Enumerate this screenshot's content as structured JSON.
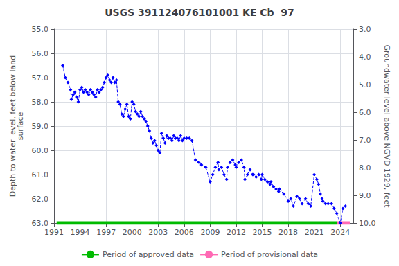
{
  "chart_data": {
    "type": "line",
    "title": "USGS 391124076101001 KE Cb  97",
    "y_label": "Depth to water level, feet below land\nsurface",
    "y2_label": "Groundwater level above NGVD 1929, feet",
    "xlim": [
      1991.0,
      2025.5
    ],
    "xticks": [
      1991,
      1994,
      1997,
      2000,
      2003,
      2006,
      2009,
      2012,
      2015,
      2018,
      2021,
      2024
    ],
    "ylim": [
      63.0,
      55.0
    ],
    "yticks": [
      {
        "value": 55.0,
        "label": "55.0"
      },
      {
        "value": 56.0,
        "label": "56.0"
      },
      {
        "value": 57.0,
        "label": "57.0"
      },
      {
        "value": 58.0,
        "label": "58.0"
      },
      {
        "value": 59.0,
        "label": "59.0"
      },
      {
        "value": 60.0,
        "label": "60.0"
      },
      {
        "value": 61.0,
        "label": "61.0"
      },
      {
        "value": 62.0,
        "label": "62.0"
      },
      {
        "value": 63.0,
        "label": "63.0"
      }
    ],
    "y2lim": [
      10.0,
      3.0
    ],
    "y2ticks": [
      {
        "value": 3.0,
        "label": "3.0"
      },
      {
        "value": 4.0,
        "label": "4.0"
      },
      {
        "value": 5.0,
        "label": "5.0"
      },
      {
        "value": 6.0,
        "label": "6.0"
      },
      {
        "value": 7.0,
        "label": "7.0"
      },
      {
        "value": 8.0,
        "label": "8.0"
      },
      {
        "value": 9.0,
        "label": "9.0"
      },
      {
        "value": 10.0,
        "label": "10.0"
      }
    ],
    "grid": true,
    "legend": "bottom",
    "series": [
      {
        "color": "#0000FF",
        "marker": "diamond",
        "line_style": "dashed",
        "x": [
          1992.0,
          1992.3,
          1992.6,
          1992.9,
          1993.0,
          1993.2,
          1993.4,
          1993.6,
          1993.8,
          1994.0,
          1994.2,
          1994.4,
          1994.6,
          1994.8,
          1995.0,
          1995.2,
          1995.4,
          1995.6,
          1995.8,
          1996.0,
          1996.2,
          1996.4,
          1996.6,
          1996.8,
          1997.0,
          1997.2,
          1997.4,
          1997.6,
          1997.8,
          1998.0,
          1998.2,
          1998.4,
          1998.6,
          1998.8,
          1999.0,
          1999.2,
          1999.4,
          1999.6,
          1999.8,
          2000.0,
          2000.2,
          2000.4,
          2000.6,
          2000.8,
          2001.0,
          2001.2,
          2001.4,
          2001.6,
          2001.8,
          2002.0,
          2002.2,
          2002.4,
          2002.6,
          2002.8,
          2003.0,
          2003.2,
          2003.4,
          2003.6,
          2003.8,
          2004.0,
          2004.2,
          2004.4,
          2004.6,
          2004.8,
          2005.0,
          2005.2,
          2005.4,
          2005.6,
          2005.8,
          2006.0,
          2006.3,
          2006.6,
          2006.9,
          2007.3,
          2007.7,
          2008.0,
          2008.5,
          2009.0,
          2009.3,
          2009.6,
          2009.9,
          2010.0,
          2010.3,
          2010.6,
          2010.9,
          2011.0,
          2011.3,
          2011.6,
          2011.9,
          2012.0,
          2012.3,
          2012.6,
          2012.9,
          2013.0,
          2013.3,
          2013.6,
          2013.9,
          2014.0,
          2014.3,
          2014.6,
          2014.9,
          2015.0,
          2015.3,
          2015.6,
          2015.9,
          2016.0,
          2016.3,
          2016.6,
          2016.9,
          2017.0,
          2017.5,
          2018.0,
          2018.3,
          2018.6,
          2019.0,
          2019.3,
          2019.6,
          2020.0,
          2020.3,
          2020.6,
          2021.0,
          2021.3,
          2021.5,
          2021.7,
          2021.9,
          2022.0,
          2022.3,
          2022.6,
          2023.0,
          2023.3,
          2023.6,
          2024.0,
          2024.3,
          2024.6
        ],
        "values": [
          56.5,
          57.0,
          57.2,
          57.5,
          57.9,
          57.7,
          57.6,
          57.8,
          58.0,
          57.5,
          57.4,
          57.6,
          57.5,
          57.6,
          57.7,
          57.5,
          57.6,
          57.7,
          57.8,
          57.5,
          57.6,
          57.5,
          57.4,
          57.2,
          57.0,
          56.9,
          57.1,
          57.2,
          57.0,
          57.2,
          57.1,
          58.0,
          58.1,
          58.5,
          58.6,
          58.3,
          58.1,
          58.6,
          58.7,
          58.0,
          58.1,
          58.4,
          58.5,
          58.6,
          58.4,
          58.6,
          58.7,
          58.8,
          59.0,
          59.2,
          59.5,
          59.7,
          59.6,
          59.8,
          60.0,
          60.1,
          59.3,
          59.5,
          59.7,
          59.4,
          59.5,
          59.5,
          59.6,
          59.4,
          59.5,
          59.5,
          59.6,
          59.4,
          59.6,
          59.5,
          59.5,
          59.5,
          59.6,
          60.4,
          60.5,
          60.6,
          60.7,
          61.3,
          61.0,
          60.7,
          60.5,
          60.8,
          60.7,
          61.0,
          61.2,
          60.7,
          60.5,
          60.4,
          60.6,
          60.7,
          60.5,
          60.4,
          60.7,
          61.2,
          61.0,
          60.8,
          61.0,
          61.0,
          61.1,
          61.0,
          61.2,
          61.0,
          61.2,
          61.3,
          61.4,
          61.3,
          61.5,
          61.6,
          61.7,
          61.6,
          61.8,
          62.1,
          62.0,
          62.3,
          61.9,
          62.0,
          62.2,
          62.0,
          62.2,
          62.3,
          61.0,
          61.2,
          61.4,
          61.8,
          62.0,
          62.1,
          62.2,
          62.2,
          62.2,
          62.4,
          62.6,
          63.0,
          62.4,
          62.3
        ]
      },
      {
        "name": "Period of approved data",
        "color": "#00BB00",
        "line_style": "solid",
        "x": [
          1991.3,
          2023.6
        ],
        "values": [
          63.0,
          63.0
        ]
      },
      {
        "name": "Period of provisional data",
        "color": "#FF69B4",
        "line_style": "solid",
        "x": [
          2023.6,
          2025.1
        ],
        "values": [
          63.0,
          63.0
        ]
      }
    ]
  }
}
